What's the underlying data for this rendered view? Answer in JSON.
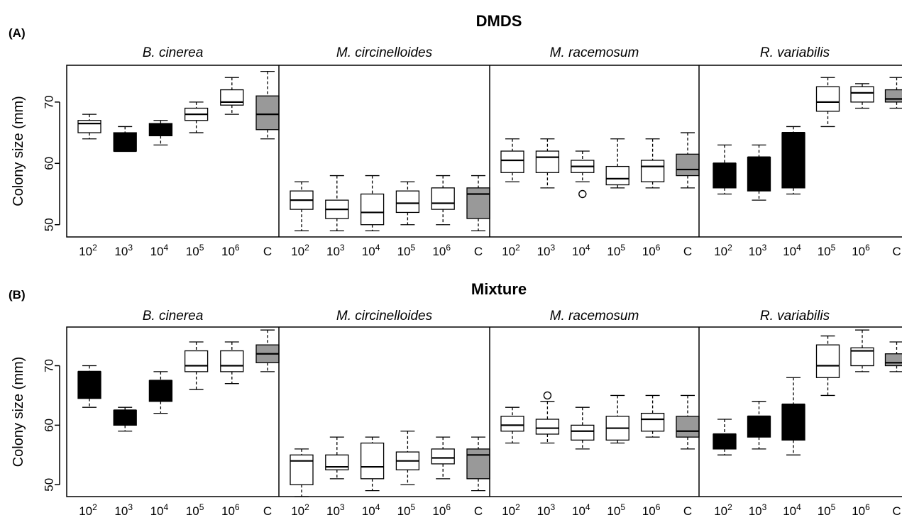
{
  "chart_data": [
    {
      "type": "boxplot",
      "panel_label": "(A)",
      "title": "DMDS",
      "ylabel": "Colony size (mm)",
      "ylim": [
        48,
        76
      ],
      "yticks": [
        50,
        60,
        70
      ],
      "categories": [
        "10",
        "10",
        "10",
        "10",
        "10",
        "C"
      ],
      "category_exponents": [
        "2",
        "3",
        "4",
        "5",
        "6",
        ""
      ],
      "fill_colors": {
        "black": "#000000",
        "white": "#ffffff",
        "control": "#999999"
      },
      "groups": [
        {
          "name": "B. cinerea",
          "boxes": [
            {
              "min": 64,
              "q1": 65,
              "median": 66.5,
              "q3": 67,
              "max": 68,
              "fill": "white",
              "outliers": []
            },
            {
              "min": 62,
              "q1": 62,
              "median": 62,
              "q3": 65,
              "max": 66,
              "fill": "black",
              "outliers": []
            },
            {
              "min": 63,
              "q1": 64.5,
              "median": 65.5,
              "q3": 66.5,
              "max": 67,
              "fill": "black",
              "outliers": []
            },
            {
              "min": 65,
              "q1": 67,
              "median": 68,
              "q3": 69,
              "max": 70,
              "fill": "white",
              "outliers": []
            },
            {
              "min": 68,
              "q1": 69.5,
              "median": 70,
              "q3": 72,
              "max": 74,
              "fill": "white",
              "outliers": []
            },
            {
              "min": 64,
              "q1": 65.5,
              "median": 68,
              "q3": 71,
              "max": 75,
              "fill": "control",
              "outliers": []
            }
          ]
        },
        {
          "name": "M. circinelloides",
          "boxes": [
            {
              "min": 49,
              "q1": 52.5,
              "median": 54,
              "q3": 55.5,
              "max": 57,
              "fill": "white",
              "outliers": []
            },
            {
              "min": 49,
              "q1": 51,
              "median": 52.5,
              "q3": 54,
              "max": 58,
              "fill": "white",
              "outliers": []
            },
            {
              "min": 49,
              "q1": 50,
              "median": 52,
              "q3": 55,
              "max": 58,
              "fill": "white",
              "outliers": []
            },
            {
              "min": 50,
              "q1": 52,
              "median": 53.5,
              "q3": 55.5,
              "max": 57,
              "fill": "white",
              "outliers": []
            },
            {
              "min": 50,
              "q1": 52.5,
              "median": 53.5,
              "q3": 56,
              "max": 58,
              "fill": "white",
              "outliers": []
            },
            {
              "min": 49,
              "q1": 51,
              "median": 55,
              "q3": 56,
              "max": 58,
              "fill": "control",
              "outliers": []
            }
          ]
        },
        {
          "name": "M. racemosum",
          "boxes": [
            {
              "min": 57,
              "q1": 58.5,
              "median": 60.5,
              "q3": 62,
              "max": 64,
              "fill": "white",
              "outliers": []
            },
            {
              "min": 56,
              "q1": 58.5,
              "median": 61,
              "q3": 62,
              "max": 64,
              "fill": "white",
              "outliers": []
            },
            {
              "min": 57,
              "q1": 58.5,
              "median": 59.5,
              "q3": 60.5,
              "max": 62,
              "fill": "white",
              "outliers": [
                55
              ]
            },
            {
              "min": 56,
              "q1": 56.5,
              "median": 57.5,
              "q3": 59.5,
              "max": 64,
              "fill": "white",
              "outliers": []
            },
            {
              "min": 56,
              "q1": 57,
              "median": 59.5,
              "q3": 60.5,
              "max": 64,
              "fill": "white",
              "outliers": []
            },
            {
              "min": 56,
              "q1": 58,
              "median": 59,
              "q3": 61.5,
              "max": 65,
              "fill": "control",
              "outliers": []
            }
          ]
        },
        {
          "name": "R. variabilis",
          "boxes": [
            {
              "min": 55,
              "q1": 56,
              "median": 60,
              "q3": 60,
              "max": 63,
              "fill": "black",
              "outliers": []
            },
            {
              "min": 54,
              "q1": 55.5,
              "median": 61,
              "q3": 61,
              "max": 63,
              "fill": "black",
              "outliers": []
            },
            {
              "min": 55,
              "q1": 56,
              "median": 65,
              "q3": 65,
              "max": 66,
              "fill": "black",
              "outliers": []
            },
            {
              "min": 66,
              "q1": 68.5,
              "median": 70,
              "q3": 72.5,
              "max": 74,
              "fill": "white",
              "outliers": []
            },
            {
              "min": 69,
              "q1": 70,
              "median": 71.5,
              "q3": 72.5,
              "max": 73,
              "fill": "white",
              "outliers": []
            },
            {
              "min": 69,
              "q1": 70,
              "median": 70.5,
              "q3": 72,
              "max": 74,
              "fill": "control",
              "outliers": []
            }
          ]
        }
      ]
    },
    {
      "type": "boxplot",
      "panel_label": "(B)",
      "title": "Mixture",
      "ylabel": "Colony size (mm)",
      "ylim": [
        48,
        76.5
      ],
      "yticks": [
        50,
        60,
        70
      ],
      "categories": [
        "10",
        "10",
        "10",
        "10",
        "10",
        "C"
      ],
      "category_exponents": [
        "2",
        "3",
        "4",
        "5",
        "6",
        ""
      ],
      "fill_colors": {
        "black": "#000000",
        "white": "#ffffff",
        "control": "#999999"
      },
      "groups": [
        {
          "name": "B. cinerea",
          "boxes": [
            {
              "min": 63,
              "q1": 64.5,
              "median": 69,
              "q3": 69,
              "max": 70,
              "fill": "black",
              "outliers": []
            },
            {
              "min": 59,
              "q1": 60,
              "median": 62.5,
              "q3": 62.5,
              "max": 63,
              "fill": "black",
              "outliers": []
            },
            {
              "min": 62,
              "q1": 64,
              "median": 67.5,
              "q3": 67.5,
              "max": 69,
              "fill": "black",
              "outliers": []
            },
            {
              "min": 66,
              "q1": 69,
              "median": 70,
              "q3": 72.5,
              "max": 74,
              "fill": "white",
              "outliers": []
            },
            {
              "min": 67,
              "q1": 69,
              "median": 70,
              "q3": 72.5,
              "max": 74,
              "fill": "white",
              "outliers": []
            },
            {
              "min": 69,
              "q1": 70.5,
              "median": 72,
              "q3": 73.5,
              "max": 76,
              "fill": "control",
              "outliers": []
            }
          ]
        },
        {
          "name": "M. circinelloides",
          "boxes": [
            {
              "min": 48,
              "q1": 50,
              "median": 54,
              "q3": 55,
              "max": 56,
              "fill": "white",
              "outliers": []
            },
            {
              "min": 51,
              "q1": 52.5,
              "median": 53,
              "q3": 55,
              "max": 58,
              "fill": "white",
              "outliers": []
            },
            {
              "min": 49,
              "q1": 51,
              "median": 53,
              "q3": 57,
              "max": 58,
              "fill": "white",
              "outliers": []
            },
            {
              "min": 50,
              "q1": 52.5,
              "median": 54,
              "q3": 55.5,
              "max": 59,
              "fill": "white",
              "outliers": []
            },
            {
              "min": 51,
              "q1": 53.5,
              "median": 54.5,
              "q3": 56,
              "max": 58,
              "fill": "white",
              "outliers": []
            },
            {
              "min": 49,
              "q1": 51,
              "median": 55,
              "q3": 56,
              "max": 58,
              "fill": "control",
              "outliers": []
            }
          ]
        },
        {
          "name": "M. racemosum",
          "boxes": [
            {
              "min": 57,
              "q1": 59,
              "median": 60,
              "q3": 61.5,
              "max": 63,
              "fill": "white",
              "outliers": []
            },
            {
              "min": 57,
              "q1": 58.5,
              "median": 59.5,
              "q3": 61,
              "max": 64,
              "fill": "white",
              "outliers": [
                65
              ]
            },
            {
              "min": 56,
              "q1": 57.5,
              "median": 59,
              "q3": 60,
              "max": 63,
              "fill": "white",
              "outliers": []
            },
            {
              "min": 57,
              "q1": 57.5,
              "median": 59.5,
              "q3": 61.5,
              "max": 65,
              "fill": "white",
              "outliers": []
            },
            {
              "min": 58,
              "q1": 59,
              "median": 61,
              "q3": 62,
              "max": 65,
              "fill": "white",
              "outliers": []
            },
            {
              "min": 56,
              "q1": 58,
              "median": 59,
              "q3": 61.5,
              "max": 65,
              "fill": "control",
              "outliers": []
            }
          ]
        },
        {
          "name": "R. variabilis",
          "boxes": [
            {
              "min": 55,
              "q1": 56,
              "median": 58.5,
              "q3": 58.5,
              "max": 61,
              "fill": "black",
              "outliers": []
            },
            {
              "min": 56,
              "q1": 58,
              "median": 61.5,
              "q3": 61.5,
              "max": 64,
              "fill": "black",
              "outliers": []
            },
            {
              "min": 55,
              "q1": 57.5,
              "median": 63.5,
              "q3": 63.5,
              "max": 68,
              "fill": "black",
              "outliers": []
            },
            {
              "min": 65,
              "q1": 68,
              "median": 70,
              "q3": 73.5,
              "max": 75,
              "fill": "white",
              "outliers": []
            },
            {
              "min": 69,
              "q1": 70,
              "median": 72.5,
              "q3": 73,
              "max": 76,
              "fill": "white",
              "outliers": []
            },
            {
              "min": 69,
              "q1": 70,
              "median": 70.5,
              "q3": 72,
              "max": 74,
              "fill": "control",
              "outliers": []
            }
          ]
        }
      ]
    }
  ]
}
